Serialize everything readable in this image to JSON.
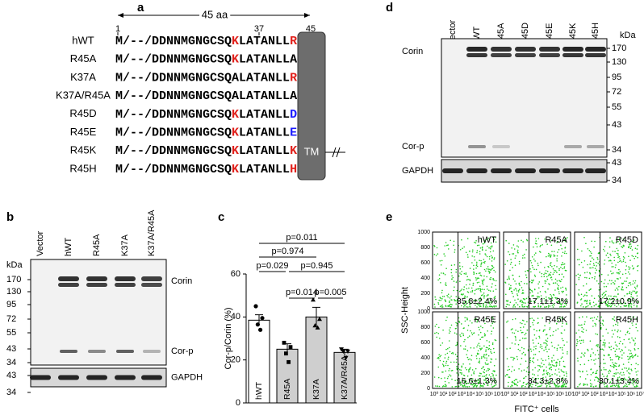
{
  "panel_a": {
    "letter": "a",
    "span": "45 aa",
    "positions": [
      1,
      37,
      45
    ],
    "tm": "TM",
    "rows": [
      {
        "label": "hWT",
        "prefix": "M/--/DDNNMGNGCSQ",
        "pos37": "K",
        "mid": "LATANLL",
        "pos45": "R",
        "pos37_color": "#e0201b",
        "pos45_color": "#e0201b"
      },
      {
        "label": "R45A",
        "prefix": "M/--/DDNNMGNGCSQ",
        "pos37": "K",
        "mid": "LATANLL",
        "pos45": "A",
        "pos37_color": "#e0201b",
        "pos45_color": "#000000"
      },
      {
        "label": "K37A",
        "prefix": "M/--/DDNNMGNGCSQ",
        "pos37": "A",
        "mid": "LATANLL",
        "pos45": "R",
        "pos37_color": "#000000",
        "pos45_color": "#e0201b"
      },
      {
        "label": "K37A/R45A",
        "prefix": "M/--/DDNNMGNGCSQ",
        "pos37": "A",
        "mid": "LATANLL",
        "pos45": "A",
        "pos37_color": "#000000",
        "pos45_color": "#000000"
      },
      {
        "label": "R45D",
        "prefix": "M/--/DDNNMGNGCSQ",
        "pos37": "K",
        "mid": "LATANLL",
        "pos45": "D",
        "pos37_color": "#e0201b",
        "pos45_color": "#1a1aff"
      },
      {
        "label": "R45E",
        "prefix": "M/--/DDNNMGNGCSQ",
        "pos37": "K",
        "mid": "LATANLL",
        "pos45": "E",
        "pos37_color": "#e0201b",
        "pos45_color": "#1a1aff"
      },
      {
        "label": "R45K",
        "prefix": "M/--/DDNNMGNGCSQ",
        "pos37": "K",
        "mid": "LATANLL",
        "pos45": "K",
        "pos37_color": "#e0201b",
        "pos45_color": "#e0201b"
      },
      {
        "label": "R45H",
        "prefix": "M/--/DDNNMGNGCSQ",
        "pos37": "K",
        "mid": "LATANLL",
        "pos45": "H",
        "pos37_color": "#e0201b",
        "pos45_color": "#e0201b"
      }
    ]
  },
  "panel_b": {
    "letter": "b",
    "lanes": [
      "Vector",
      "hWT",
      "R45A",
      "K37A",
      "K37A/R45A"
    ],
    "kda": "kDa",
    "markers": [
      170,
      130,
      95,
      72,
      55,
      43,
      34
    ],
    "gapdh_markers": [
      43,
      34
    ],
    "corin": "Corin",
    "corp": "Cor-p",
    "gapdh": "GAPDH"
  },
  "panel_c": {
    "letter": "c"
  },
  "chart_data": {
    "type": "bar",
    "categories": [
      "hWT",
      "R45A",
      "K37A",
      "K37A/R45A"
    ],
    "values": [
      38.5,
      25,
      40,
      23.5
    ],
    "errors": [
      2.5,
      2.5,
      4.5,
      1.5
    ],
    "points": [
      [
        45,
        39.5,
        36.5,
        34
      ],
      [
        28,
        26,
        23,
        19
      ],
      [
        48,
        39,
        36,
        35
      ],
      [
        25,
        24,
        24,
        21
      ]
    ],
    "colors": [
      "#ffffff",
      "#cfcfcf",
      "#cfcfcf",
      "#cfcfcf"
    ],
    "ylabel": "Cor-p/Corin (%)",
    "ylim": [
      0,
      60
    ],
    "yticks": [
      0,
      20,
      40,
      60
    ],
    "comparisons": [
      "p=0.011",
      "p=0.974",
      "p=0.029",
      "p=0.945",
      "p=0.014",
      "p=0.005"
    ]
  },
  "panel_d": {
    "letter": "d",
    "lanes": [
      "Vector",
      "hWT",
      "R45A",
      "R45D",
      "R45E",
      "R45K",
      "R45H"
    ],
    "kda": "kDa",
    "markers": [
      170,
      130,
      95,
      72,
      55,
      43,
      34
    ],
    "gapdh_markers": [
      43,
      34
    ],
    "corin": "Corin",
    "corp": "Cor-p",
    "gapdh": "GAPDH"
  },
  "panel_e": {
    "letter": "e",
    "ylabel": "SSC-Height",
    "xlabel": "FITC⁺ cells",
    "plots": [
      {
        "name": "hWT",
        "value": "35.8±2.4%"
      },
      {
        "name": "R45A",
        "value": "17.1±1.3%"
      },
      {
        "name": "R45D",
        "value": "17.2±0.9%"
      },
      {
        "name": "R45E",
        "value": "16.6±1.3%"
      },
      {
        "name": "R45K",
        "value": "34.3±2.8%"
      },
      {
        "name": "R45H",
        "value": "30.1±3.4%"
      }
    ],
    "yticks": [
      0,
      200,
      400,
      600,
      800,
      1000
    ],
    "xticks": [
      "10⁰",
      "10¹",
      "10²",
      "10³",
      "10⁴",
      "10⁵",
      "10⁶",
      "10⁷"
    ]
  }
}
